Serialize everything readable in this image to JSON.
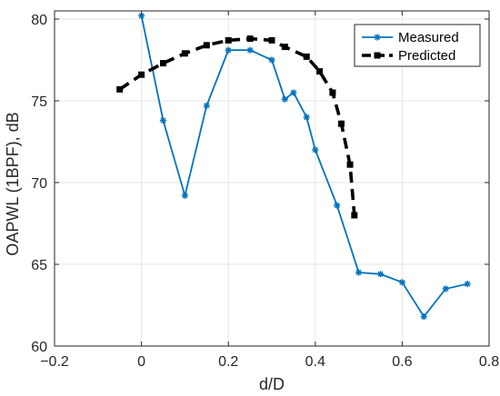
{
  "chart_data": {
    "type": "line",
    "xlabel": "d/D",
    "ylabel": "OAPWL (1BPF), dB",
    "xlim": [
      -0.2,
      0.8
    ],
    "ylim": [
      60,
      80.5
    ],
    "xticks": [
      -0.2,
      0,
      0.2,
      0.4,
      0.6,
      0.8
    ],
    "xtick_labels": [
      "−0.2",
      "0",
      "0.2",
      "0.4",
      "0.6",
      "0.8"
    ],
    "yticks": [
      60,
      65,
      70,
      75,
      80
    ],
    "ytick_labels": [
      "60",
      "65",
      "70",
      "75",
      "80"
    ],
    "grid": true,
    "legend_position": "top-right",
    "series": [
      {
        "name": "Measured",
        "color": "#0072BD",
        "style": "solid",
        "marker": "asterisk",
        "x": [
          0.0,
          0.05,
          0.1,
          0.15,
          0.2,
          0.25,
          0.3,
          0.33,
          0.35,
          0.38,
          0.4,
          0.45,
          0.5,
          0.55,
          0.6,
          0.65,
          0.7,
          0.75
        ],
        "y": [
          80.2,
          73.8,
          69.2,
          74.7,
          78.1,
          78.1,
          77.5,
          75.1,
          75.5,
          74.0,
          72.0,
          68.6,
          64.5,
          64.4,
          63.9,
          61.8,
          63.5,
          63.8
        ]
      },
      {
        "name": "Predicted",
        "color": "#000000",
        "style": "dashed",
        "marker": "square",
        "x": [
          -0.05,
          0.0,
          0.05,
          0.1,
          0.15,
          0.2,
          0.25,
          0.3,
          0.33,
          0.38,
          0.41,
          0.44,
          0.46,
          0.48,
          0.49
        ],
        "y": [
          75.7,
          76.6,
          77.3,
          77.9,
          78.4,
          78.7,
          78.8,
          78.7,
          78.3,
          77.7,
          76.8,
          75.5,
          73.6,
          71.1,
          68.0
        ]
      }
    ]
  }
}
